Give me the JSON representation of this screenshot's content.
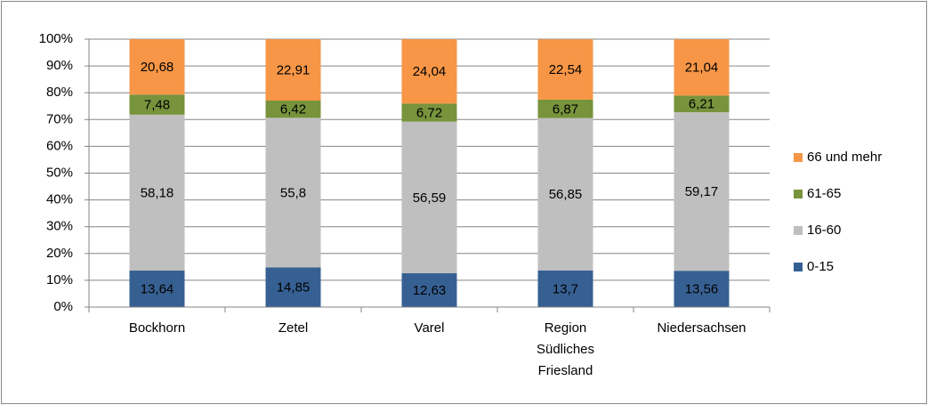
{
  "chart_data": {
    "type": "stacked_bar_100",
    "categories": [
      "Bockhorn",
      "Zetel",
      "Varel",
      "Region Südliches Friesland",
      "Niedersachsen"
    ],
    "series": [
      {
        "name": "0-15",
        "color": "#376092",
        "values": [
          13.64,
          14.85,
          12.63,
          13.7,
          13.56
        ],
        "value_labels": [
          "13,64",
          "14,85",
          "12,63",
          "13,7",
          "13,56"
        ]
      },
      {
        "name": "16-60",
        "color": "#bfbfbf",
        "values": [
          58.18,
          55.8,
          56.59,
          56.85,
          59.17
        ],
        "value_labels": [
          "58,18",
          "55,8",
          "56,59",
          "56,85",
          "59,17"
        ]
      },
      {
        "name": "61-65",
        "color": "#77933c",
        "values": [
          7.48,
          6.42,
          6.72,
          6.87,
          6.21
        ],
        "value_labels": [
          "7,48",
          "6,42",
          "6,72",
          "6,87",
          "6,21"
        ]
      },
      {
        "name": "66 und mehr",
        "color": "#f79646",
        "values": [
          20.68,
          22.91,
          24.04,
          22.54,
          21.04
        ],
        "value_labels": [
          "20,68",
          "22,91",
          "24,04",
          "22,54",
          "21,04"
        ]
      }
    ],
    "ylim": [
      0,
      100
    ],
    "yticks": [
      {
        "value": 0,
        "label": "0%"
      },
      {
        "value": 10,
        "label": "10%"
      },
      {
        "value": 20,
        "label": "20%"
      },
      {
        "value": 30,
        "label": "30%"
      },
      {
        "value": 40,
        "label": "40%"
      },
      {
        "value": 50,
        "label": "50%"
      },
      {
        "value": 60,
        "label": "60%"
      },
      {
        "value": 70,
        "label": "70%"
      },
      {
        "value": 80,
        "label": "80%"
      },
      {
        "value": 90,
        "label": "90%"
      },
      {
        "value": 100,
        "label": "100%"
      }
    ],
    "grid": true,
    "legend": "right"
  }
}
